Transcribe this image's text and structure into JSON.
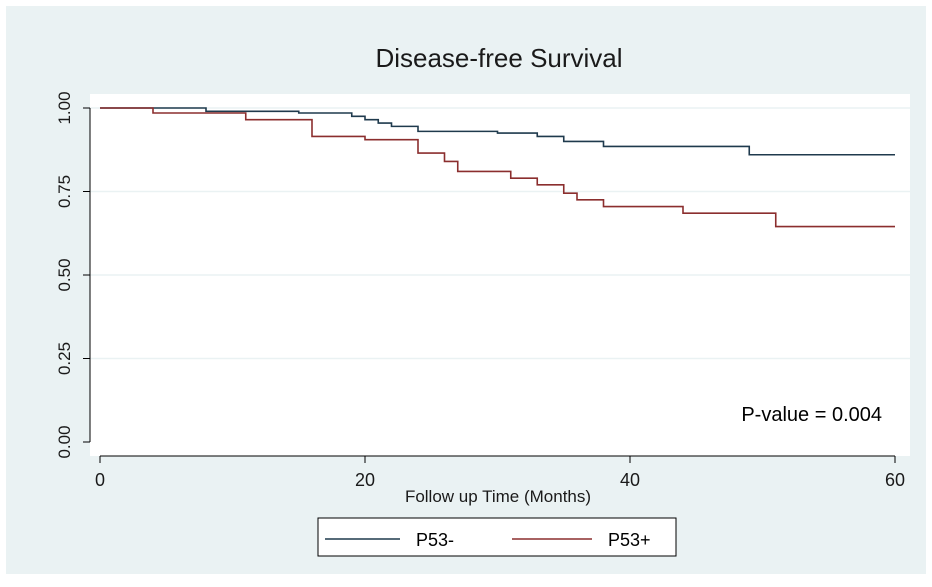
{
  "chart_data": {
    "type": "line",
    "title": "Disease-free Survival",
    "xlabel": "Follow up Time (Months)",
    "ylabel": "",
    "xlim": [
      0,
      60
    ],
    "ylim": [
      0,
      1
    ],
    "x_ticks": [
      0,
      20,
      40,
      60
    ],
    "x_tick_labels": [
      "0",
      "20",
      "40",
      "60"
    ],
    "y_ticks": [
      0,
      0.25,
      0.5,
      0.75,
      1
    ],
    "y_tick_labels": [
      "0.00",
      "0.25",
      "0.50",
      "0.75",
      "1.00"
    ],
    "grid": true,
    "legend_position": "bottom",
    "step": true,
    "annotation": "P-value = 0.004",
    "series": [
      {
        "name": "P53-",
        "color": "#1f3a4d",
        "x": [
          0,
          8,
          15,
          19,
          20,
          21,
          22,
          24,
          30,
          33,
          35,
          38,
          49,
          60
        ],
        "y": [
          1.0,
          0.99,
          0.985,
          0.975,
          0.965,
          0.955,
          0.945,
          0.93,
          0.925,
          0.915,
          0.9,
          0.885,
          0.86,
          0.86
        ]
      },
      {
        "name": "P53+",
        "color": "#8b2e2e",
        "x": [
          0,
          4,
          11,
          16,
          20,
          24,
          26,
          27,
          31,
          33,
          35,
          36,
          38,
          40,
          44,
          51,
          60
        ],
        "y": [
          1.0,
          0.985,
          0.965,
          0.915,
          0.905,
          0.865,
          0.84,
          0.81,
          0.79,
          0.77,
          0.745,
          0.725,
          0.705,
          0.705,
          0.685,
          0.645,
          0.645
        ]
      }
    ]
  }
}
